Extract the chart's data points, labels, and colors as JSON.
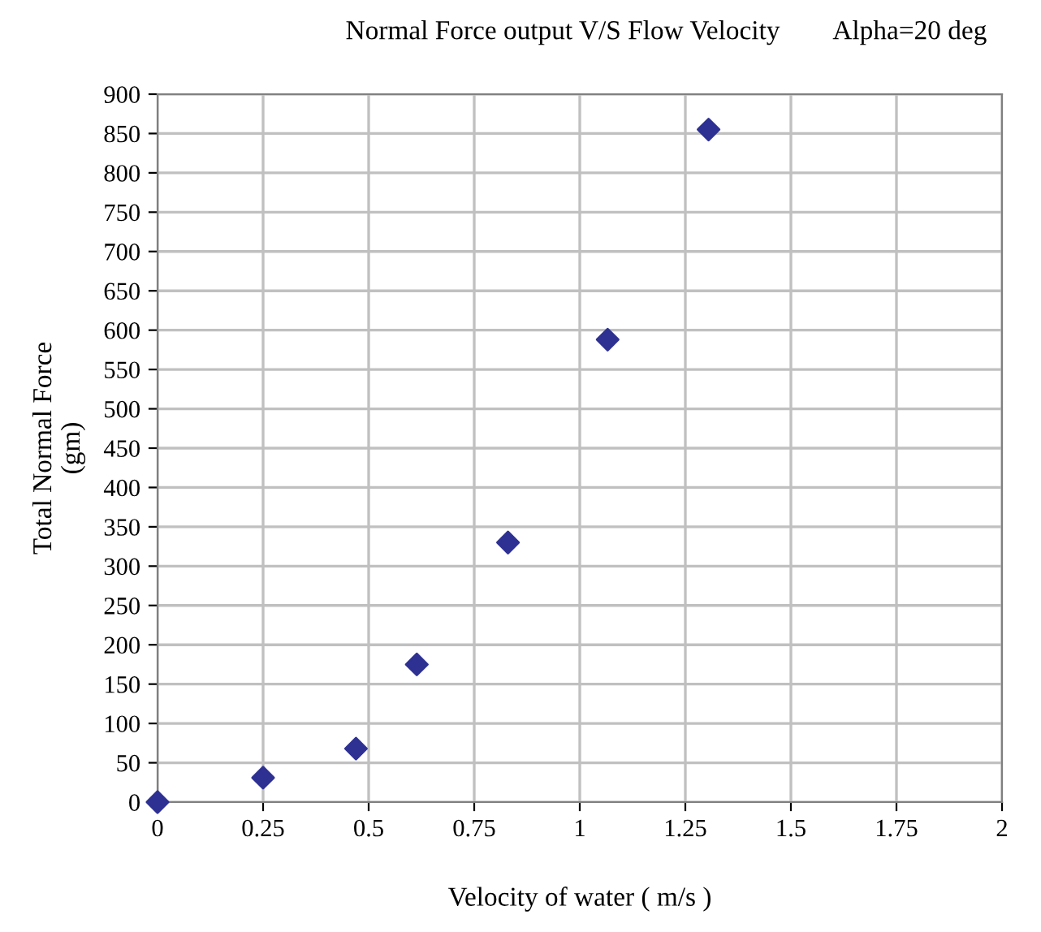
{
  "chart_data": {
    "type": "scatter",
    "title": "Normal Force output V/S Flow Velocity        Alpha=20 deg",
    "xlabel": "Velocity of water ( m/s )",
    "ylabel": "Total Normal Force\n(gm)",
    "x": [
      0,
      0.25,
      0.47,
      0.614,
      0.83,
      1.066,
      1.305
    ],
    "series": [
      {
        "color": "#2e3192",
        "values": [
          0,
          31,
          68,
          175,
          330,
          588,
          855
        ]
      }
    ],
    "xlim": [
      0,
      2
    ],
    "xticks": [
      0,
      0.25,
      0.5,
      0.75,
      1,
      1.25,
      1.5,
      1.75,
      2
    ],
    "ylim": [
      0,
      900
    ],
    "yticks": [
      0,
      50,
      100,
      150,
      200,
      250,
      300,
      350,
      400,
      450,
      500,
      550,
      600,
      650,
      700,
      750,
      800,
      850,
      900
    ],
    "grid": true,
    "marker": "diamond"
  }
}
